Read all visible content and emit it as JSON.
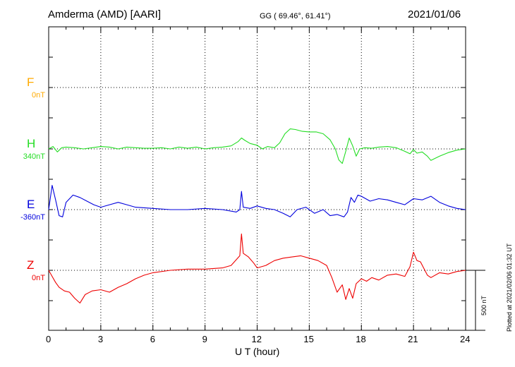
{
  "header": {
    "station": "Amderma (AMD)  [AARI]",
    "coords": "GG ( 69.46°,  61.41°)",
    "date": "2021/01/06"
  },
  "footer": {
    "plotted": "Plotted at 2021/02/06 01:32 UT"
  },
  "chart_data": {
    "type": "line",
    "xlabel": "U T (hour)",
    "xlim": [
      0,
      24
    ],
    "xticks": [
      0,
      3,
      6,
      9,
      12,
      15,
      18,
      21,
      24
    ],
    "xtick_labels": [
      "0",
      "3",
      "6",
      "9",
      "12",
      "15",
      "18",
      "21",
      "24"
    ],
    "grid": true,
    "scale_bar": {
      "label": "500 nT",
      "value_nT": 500
    },
    "series": [
      {
        "name": "F",
        "baseline_label": "0nT",
        "color": "#ffaa00",
        "x": [],
        "values": []
      },
      {
        "name": "H",
        "baseline_label": "340nT",
        "color": "#22dd22",
        "x": [
          0,
          0.25,
          0.5,
          0.75,
          1.0,
          1.5,
          2.0,
          2.5,
          3.0,
          3.5,
          4.0,
          4.5,
          5.0,
          5.5,
          6.0,
          6.5,
          7.0,
          7.5,
          8.0,
          8.5,
          9.0,
          9.5,
          10.0,
          10.5,
          10.9,
          11.1,
          11.3,
          11.6,
          12.0,
          12.3,
          12.6,
          13.0,
          13.3,
          13.6,
          13.9,
          14.2,
          14.6,
          15.0,
          15.4,
          15.8,
          16.2,
          16.5,
          16.7,
          16.9,
          17.1,
          17.3,
          17.5,
          17.7,
          17.9,
          18.2,
          18.6,
          19.0,
          19.5,
          20.0,
          20.5,
          20.8,
          21.0,
          21.2,
          21.5,
          21.8,
          22.0,
          22.5,
          23.0,
          23.5,
          24.0
        ],
        "values": [
          0,
          20,
          -25,
          10,
          15,
          10,
          0,
          10,
          20,
          15,
          0,
          15,
          10,
          5,
          5,
          10,
          0,
          15,
          5,
          15,
          0,
          10,
          15,
          25,
          60,
          90,
          70,
          45,
          30,
          0,
          20,
          10,
          50,
          125,
          165,
          160,
          145,
          140,
          140,
          125,
          75,
          0,
          -90,
          -120,
          -20,
          90,
          25,
          -60,
          0,
          10,
          5,
          15,
          20,
          10,
          -20,
          -40,
          -5,
          -35,
          -25,
          -60,
          -95,
          -60,
          -30,
          -10,
          0
        ]
      },
      {
        "name": "E",
        "baseline_label": "-360nT",
        "color": "#0000dd",
        "x": [
          0,
          0.2,
          0.4,
          0.6,
          0.8,
          1.0,
          1.4,
          1.8,
          2.2,
          2.6,
          3.0,
          3.5,
          4.0,
          4.5,
          5.0,
          6.0,
          7.0,
          8.0,
          9.0,
          10.0,
          10.8,
          11.0,
          11.1,
          11.2,
          11.6,
          12.0,
          12.5,
          13.0,
          13.5,
          13.9,
          14.3,
          14.8,
          15.3,
          15.8,
          16.2,
          16.6,
          17.0,
          17.2,
          17.4,
          17.6,
          17.8,
          18.0,
          18.5,
          19.0,
          19.5,
          20.0,
          20.5,
          21.0,
          21.5,
          22.0,
          22.5,
          23.0,
          23.5,
          24.0
        ],
        "values": [
          0,
          200,
          80,
          -50,
          -60,
          60,
          120,
          100,
          70,
          40,
          20,
          40,
          60,
          40,
          20,
          10,
          0,
          0,
          10,
          0,
          -20,
          0,
          150,
          20,
          10,
          30,
          10,
          0,
          -30,
          -60,
          0,
          20,
          -30,
          0,
          -50,
          -40,
          -60,
          -20,
          100,
          60,
          120,
          110,
          70,
          90,
          80,
          60,
          40,
          90,
          80,
          110,
          60,
          30,
          10,
          0
        ]
      },
      {
        "name": "Z",
        "baseline_label": "0nT",
        "color": "#ee0000",
        "x": [
          0,
          0.2,
          0.4,
          0.6,
          0.9,
          1.2,
          1.5,
          1.8,
          2.1,
          2.5,
          3.0,
          3.5,
          4.0,
          4.5,
          5.0,
          5.5,
          6.0,
          7.0,
          8.0,
          9.0,
          10.0,
          10.5,
          11.0,
          11.1,
          11.2,
          11.5,
          11.8,
          12.0,
          12.5,
          13.0,
          13.5,
          14.0,
          14.5,
          15.0,
          15.5,
          16.0,
          16.3,
          16.6,
          16.9,
          17.1,
          17.3,
          17.5,
          17.7,
          18.0,
          18.3,
          18.6,
          19.0,
          19.5,
          20.0,
          20.5,
          20.8,
          21.0,
          21.2,
          21.4,
          21.8,
          22.0,
          22.5,
          23.0,
          23.5,
          24.0
        ],
        "values": [
          0,
          -50,
          -100,
          -140,
          -170,
          -180,
          -230,
          -270,
          -200,
          -170,
          -160,
          -180,
          -140,
          -110,
          -70,
          -40,
          -20,
          0,
          10,
          10,
          20,
          40,
          120,
          300,
          140,
          110,
          60,
          20,
          40,
          80,
          100,
          110,
          120,
          100,
          80,
          40,
          -60,
          -180,
          -120,
          -240,
          -150,
          -230,
          -110,
          -70,
          -90,
          -60,
          -80,
          -40,
          -30,
          -50,
          30,
          150,
          80,
          70,
          -40,
          -60,
          -20,
          -30,
          -10,
          0
        ]
      }
    ]
  }
}
